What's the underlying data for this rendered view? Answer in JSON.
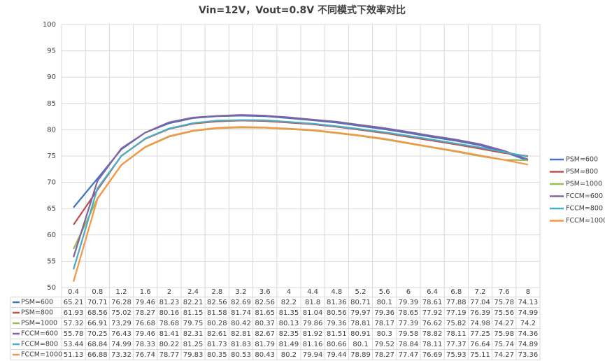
{
  "chart_data": {
    "type": "line",
    "title": "Vin=12V，Vout=0.8V 不同模式下效率对比",
    "categories": [
      "0.4",
      "0.8",
      "1.2",
      "1.6",
      "2",
      "2.4",
      "2.8",
      "3.2",
      "3.6",
      "4",
      "4.4",
      "4.8",
      "5.2",
      "5.6",
      "6",
      "6.4",
      "6.8",
      "7.2",
      "7.6",
      "8"
    ],
    "series": [
      {
        "name": "PSM=600",
        "color": "#4472c4",
        "values": [
          65.21,
          70.71,
          76.28,
          79.46,
          81.23,
          82.21,
          82.56,
          82.69,
          82.56,
          82.2,
          81.8,
          81.36,
          80.71,
          80.1,
          79.39,
          78.61,
          77.88,
          77.04,
          75.78,
          74.13
        ]
      },
      {
        "name": "PSM=800",
        "color": "#c0504d",
        "values": [
          61.93,
          68.56,
          75.02,
          78.27,
          80.16,
          81.15,
          81.58,
          81.74,
          81.65,
          81.35,
          81.04,
          80.56,
          79.97,
          79.36,
          78.65,
          77.92,
          77.19,
          76.39,
          75.56,
          74.99
        ]
      },
      {
        "name": "PSM=1000",
        "color": "#9bbb59",
        "values": [
          57.32,
          66.91,
          73.29,
          76.68,
          78.68,
          79.75,
          80.28,
          80.42,
          80.37,
          80.13,
          79.86,
          79.36,
          78.81,
          78.17,
          77.39,
          76.62,
          75.82,
          74.98,
          74.27,
          74.2
        ]
      },
      {
        "name": "FCCM=600",
        "color": "#8064a2",
        "values": [
          55.78,
          70.25,
          76.43,
          79.46,
          81.41,
          82.31,
          82.61,
          82.81,
          82.67,
          82.35,
          81.92,
          81.51,
          80.91,
          80.3,
          79.58,
          78.82,
          78.11,
          77.25,
          75.98,
          74.36
        ]
      },
      {
        "name": "FCCM=800",
        "color": "#4bacc6",
        "values": [
          53.44,
          68.84,
          74.99,
          78.33,
          80.22,
          81.25,
          81.73,
          81.83,
          81.79,
          81.49,
          81.16,
          80.66,
          80.1,
          79.52,
          78.84,
          78.11,
          77.37,
          76.64,
          75.74,
          74.89
        ]
      },
      {
        "name": "FCCM=1000",
        "color": "#f79646",
        "values": [
          51.13,
          66.88,
          73.32,
          76.74,
          78.77,
          79.83,
          80.35,
          80.53,
          80.43,
          80.2,
          79.94,
          79.44,
          78.89,
          78.27,
          77.47,
          76.69,
          75.93,
          75.11,
          74.27,
          73.36
        ]
      }
    ],
    "ylim": [
      50,
      100
    ],
    "yticks": [
      50,
      55,
      60,
      65,
      70,
      75,
      80,
      85,
      90,
      95,
      100
    ],
    "grid": true,
    "legend": "right"
  }
}
